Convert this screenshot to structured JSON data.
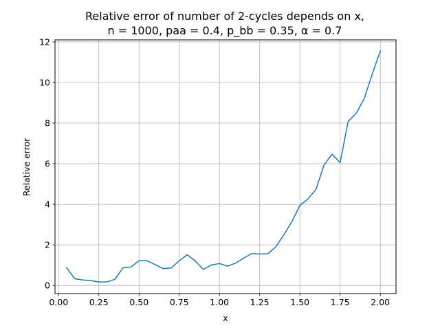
{
  "chart_data": {
    "type": "line",
    "title_line1": "Relative error of number of 2-cycles depends on x,",
    "title_line2": "n = 1000, paa = 0.4, p_bb = 0.35, α = 0.7",
    "xlabel": "x",
    "ylabel": "Relative error",
    "xlim": [
      -0.0225,
      2.0975
    ],
    "ylim": [
      -0.4,
      12.1
    ],
    "xticks": [
      0.0,
      0.25,
      0.5,
      0.75,
      1.0,
      1.25,
      1.5,
      1.75,
      2.0
    ],
    "xtick_labels": [
      "0.00",
      "0.25",
      "0.50",
      "0.75",
      "1.00",
      "1.25",
      "1.50",
      "1.75",
      "2.00"
    ],
    "yticks": [
      0,
      2,
      4,
      6,
      8,
      10,
      12
    ],
    "ytick_labels": [
      "0",
      "2",
      "4",
      "6",
      "8",
      "10",
      "12"
    ],
    "grid": true,
    "series": [
      {
        "color": "#1f77b4",
        "x": [
          0.05,
          0.1,
          0.15,
          0.2,
          0.25,
          0.3,
          0.35,
          0.4,
          0.45,
          0.5,
          0.55,
          0.6,
          0.65,
          0.7,
          0.75,
          0.8,
          0.85,
          0.9,
          0.95,
          1.0,
          1.05,
          1.1,
          1.15,
          1.2,
          1.25,
          1.3,
          1.35,
          1.4,
          1.45,
          1.5,
          1.55,
          1.6,
          1.65,
          1.7,
          1.75,
          1.8,
          1.85,
          1.9,
          1.95,
          2.0
        ],
        "y": [
          0.87,
          0.33,
          0.27,
          0.24,
          0.17,
          0.17,
          0.3,
          0.87,
          0.91,
          1.22,
          1.22,
          1.03,
          0.83,
          0.86,
          1.22,
          1.51,
          1.2,
          0.79,
          1.01,
          1.08,
          0.95,
          1.1,
          1.34,
          1.57,
          1.55,
          1.56,
          1.9,
          2.49,
          3.14,
          3.94,
          4.26,
          4.73,
          5.93,
          6.47,
          6.05,
          8.08,
          8.48,
          9.21,
          10.42,
          11.55
        ]
      }
    ]
  }
}
